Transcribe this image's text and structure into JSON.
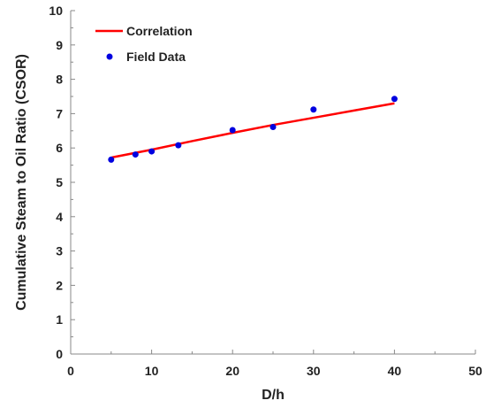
{
  "chart_data": {
    "type": "scatter",
    "title": "",
    "xlabel": "D/h",
    "ylabel": "Cumulative Steam to Oil Ratio (CSOR)",
    "xlim": [
      0,
      50
    ],
    "ylim": [
      0,
      10
    ],
    "xticks": [
      "0",
      "10",
      "20",
      "30",
      "40",
      "50"
    ],
    "yticks": [
      "0",
      "1",
      "2",
      "3",
      "4",
      "5",
      "6",
      "7",
      "8",
      "9",
      "10"
    ],
    "grid": false,
    "legend_position": "top-left",
    "series": [
      {
        "name": "Correlation",
        "kind": "line",
        "color": "#ff0000",
        "x": [
          5,
          10,
          15,
          20,
          25,
          30,
          35,
          40
        ],
        "y": [
          5.72,
          5.95,
          6.2,
          6.44,
          6.67,
          6.88,
          7.09,
          7.3
        ]
      },
      {
        "name": "Field Data",
        "kind": "points",
        "color": "#0000e0",
        "x": [
          5,
          8,
          10,
          13.3,
          20,
          25,
          30,
          40
        ],
        "y": [
          5.66,
          5.81,
          5.9,
          6.08,
          6.52,
          6.61,
          7.12,
          7.43
        ]
      }
    ]
  }
}
